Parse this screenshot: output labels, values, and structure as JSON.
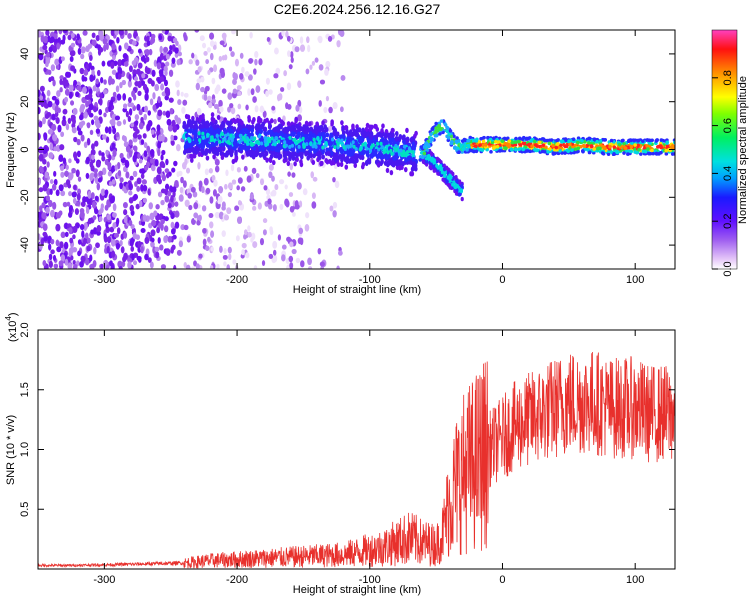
{
  "title": "C2E6.2024.256.12.16.G27",
  "chart_data": [
    {
      "type": "heatmap",
      "xlabel": "Height of straight line (km)",
      "ylabel": "Frequency (Hz)",
      "xlim": [
        -350,
        130
      ],
      "ylim": [
        -50,
        50
      ],
      "xticks": [
        -300,
        -200,
        -100,
        0,
        100
      ],
      "yticks": [
        -40,
        -20,
        0,
        20,
        40
      ],
      "colorbar": {
        "label": "Normalized spectral amplitude",
        "range": [
          0,
          1
        ],
        "ticks": [
          0.0,
          0.2,
          0.4,
          0.6,
          0.8
        ]
      },
      "trace": {
        "x": [
          -240,
          -220,
          -200,
          -180,
          -160,
          -140,
          -120,
          -100,
          -80,
          -60,
          -55,
          -50,
          -45,
          -40,
          -35,
          -30,
          -25,
          -20,
          0,
          20,
          40,
          60,
          80,
          100,
          120,
          130
        ],
        "y": [
          5,
          5,
          4,
          4,
          3,
          3,
          2,
          1,
          0,
          -2,
          4,
          8,
          10,
          6,
          2,
          1,
          2,
          2,
          2,
          2,
          1,
          2,
          1,
          1,
          1,
          1
        ]
      },
      "branch": {
        "x": [
          -60,
          -55,
          -50,
          -45,
          -40,
          -35,
          -30
        ],
        "y": [
          -2,
          -4,
          -6,
          -9,
          -12,
          -15,
          -18
        ]
      }
    },
    {
      "type": "line",
      "xlabel": "Height of straight line (km)",
      "ylabel": "SNR (10 * v/v)",
      "yscale_label": "(x10",
      "yscale_exp": "4",
      "yscale_close": ")",
      "color": "#e8302c",
      "xlim": [
        -350,
        130
      ],
      "ylim": [
        0,
        20000
      ],
      "xticks": [
        -300,
        -200,
        -100,
        0,
        100
      ],
      "yticks": [
        0.5,
        1.0,
        1.5,
        2.0
      ],
      "series": [
        {
          "x": [
            -350,
            -330,
            -300,
            -280,
            -260,
            -240,
            -220,
            -200,
            -180,
            -160,
            -140,
            -120,
            -100,
            -90,
            -80,
            -70,
            -60,
            -50,
            -45,
            -40,
            -35,
            -30,
            -25,
            -20,
            -15,
            -10,
            -5,
            0,
            10,
            20,
            30,
            40,
            50,
            60,
            70,
            80,
            90,
            100,
            110,
            120,
            130
          ],
          "y": [
            300,
            300,
            350,
            400,
            450,
            500,
            700,
            800,
            900,
            1000,
            1100,
            1200,
            1600,
            1800,
            2200,
            2600,
            2200,
            2000,
            3000,
            5500,
            7000,
            8000,
            8500,
            9000,
            9500,
            10000,
            10500,
            11000,
            12000,
            12500,
            13000,
            13500,
            14000,
            14000,
            14000,
            13500,
            13500,
            13500,
            13000,
            13000,
            13000
          ]
        }
      ]
    }
  ]
}
